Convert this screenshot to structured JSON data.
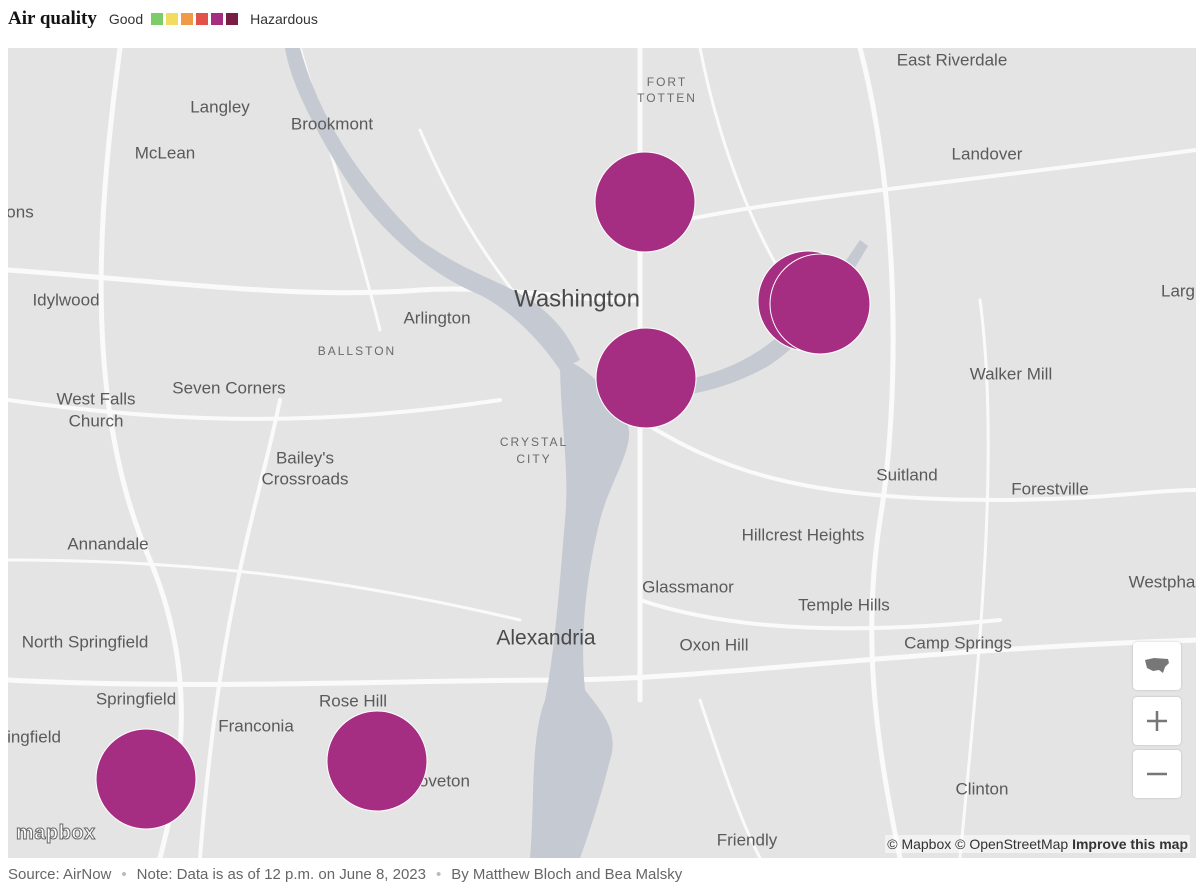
{
  "header": {
    "title": "Air quality",
    "legend_low": "Good",
    "legend_high": "Hazardous"
  },
  "map": {
    "places": [
      "Langley",
      "Brookmont",
      "McLean",
      "ons",
      "Idylwood",
      "Arlington",
      "Washington",
      "East Riverdale",
      "Landover",
      "Larg",
      "Walker Mill",
      "Seven Corners",
      "West Falls",
      "Church",
      "Bailey's",
      "Crossroads",
      "Suitland",
      "Forestville",
      "Hillcrest Heights",
      "Annandale",
      "Glassmanor",
      "Temple Hills",
      "Westpha",
      "North Springfield",
      "Alexandria",
      "Oxon Hill",
      "Camp Springs",
      "Springfield",
      "Rose Hill",
      "Franconia",
      "ingfield",
      "Groveton",
      "Clinton",
      "Friendly"
    ],
    "neighborhoods": [
      "FORT",
      "TOTTEN",
      "BALLSTON",
      "CRYSTAL",
      "CITY"
    ],
    "logo": "mapbox",
    "attribution": "© Mapbox © OpenStreetMap",
    "improve": "Improve this map"
  },
  "footer": {
    "source": "Source: AirNow",
    "note": "Note: Data is as of 12 p.m. on June 8, 2023",
    "byline": "By Matthew Bloch and Bea Malsky"
  }
}
